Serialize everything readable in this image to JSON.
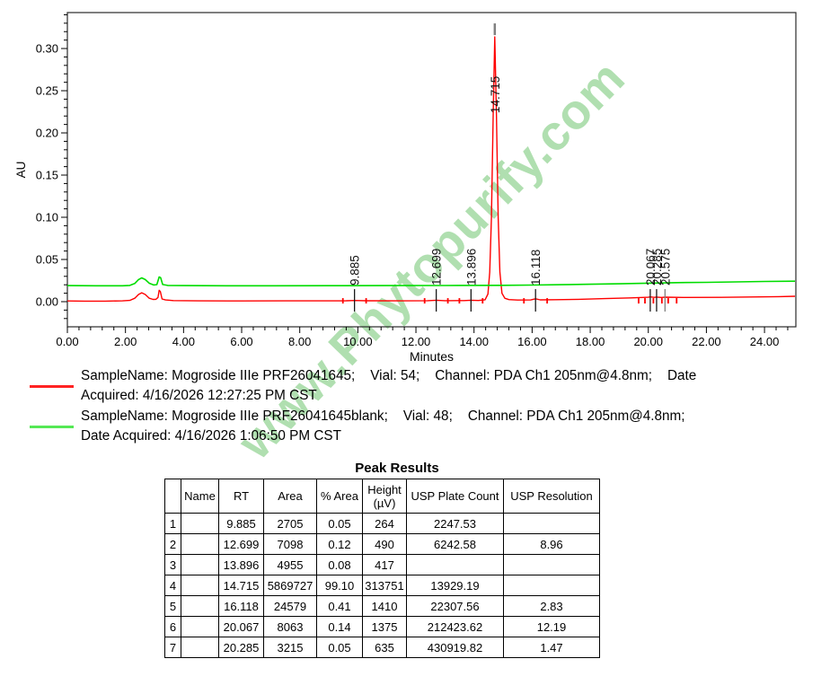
{
  "watermark": {
    "text": "www.Phytopurify.com",
    "color": "rgba(112,196,112,0.55)"
  },
  "chart_data": {
    "type": "line",
    "title": "",
    "xlabel": "Minutes",
    "ylabel": "AU",
    "xlim": [
      0,
      25.08
    ],
    "ylim": [
      -0.0298,
      0.3426
    ],
    "grid": false,
    "x_major_ticks": [
      0,
      2,
      4,
      6,
      8,
      10,
      12,
      14,
      16,
      18,
      20,
      22,
      24
    ],
    "x_tick_labels": [
      "0.00",
      "2.00",
      "4.00",
      "6.00",
      "8.00",
      "10.00",
      "12.00",
      "14.00",
      "16.00",
      "18.00",
      "20.00",
      "22.00",
      "24.00"
    ],
    "x_minor_step": 0.4,
    "y_major_ticks": [
      0.0,
      0.05,
      0.1,
      0.15,
      0.2,
      0.25,
      0.3
    ],
    "y_tick_labels": [
      "0.00",
      "0.05",
      "0.10",
      "0.15",
      "0.20",
      "0.25",
      "0.30"
    ],
    "y_minor_step": 0.01,
    "series": [
      {
        "name": "Mogroside IIIe PRF26041645 (PDA Ch1 205nm@4.8nm)",
        "color": "#ff0000",
        "points": [
          [
            0,
            0.0008
          ],
          [
            0.6,
            0.0006
          ],
          [
            1.3,
            0.0006
          ],
          [
            1.9,
            0.0009
          ],
          [
            2.15,
            0.0015
          ],
          [
            2.32,
            0.004
          ],
          [
            2.45,
            0.0085
          ],
          [
            2.56,
            0.0105
          ],
          [
            2.68,
            0.0085
          ],
          [
            2.82,
            0.004
          ],
          [
            2.95,
            0.0027
          ],
          [
            3.05,
            0.0028
          ],
          [
            3.12,
            0.005
          ],
          [
            3.16,
            0.0135
          ],
          [
            3.2,
            0.012
          ],
          [
            3.26,
            0.0032
          ],
          [
            3.38,
            0.002
          ],
          [
            3.65,
            0.0013
          ],
          [
            4.5,
            0.0009
          ],
          [
            6,
            0.0008
          ],
          [
            7.5,
            0.0009
          ],
          [
            9,
            0.001
          ],
          [
            9.6,
            0.0011
          ],
          [
            9.885,
            0.0014
          ],
          [
            10.3,
            0.0011
          ],
          [
            11.5,
            0.001
          ],
          [
            12.4,
            0.0012
          ],
          [
            12.699,
            0.0017
          ],
          [
            13.0,
            0.0012
          ],
          [
            13.65,
            0.0013
          ],
          [
            13.896,
            0.0017
          ],
          [
            14.15,
            0.0014
          ],
          [
            14.38,
            0.0022
          ],
          [
            14.48,
            0.009
          ],
          [
            14.54,
            0.035
          ],
          [
            14.6,
            0.1
          ],
          [
            14.66,
            0.225
          ],
          [
            14.715,
            0.3138
          ],
          [
            14.77,
            0.225
          ],
          [
            14.83,
            0.1
          ],
          [
            14.89,
            0.035
          ],
          [
            14.96,
            0.01
          ],
          [
            15.06,
            0.004
          ],
          [
            15.2,
            0.0024
          ],
          [
            15.5,
            0.0019
          ],
          [
            15.95,
            0.002
          ],
          [
            16.118,
            0.0034
          ],
          [
            16.28,
            0.0021
          ],
          [
            16.8,
            0.0023
          ],
          [
            17.6,
            0.0028
          ],
          [
            18.5,
            0.0036
          ],
          [
            19.4,
            0.0045
          ],
          [
            20.0,
            0.0052
          ],
          [
            20.067,
            0.0056
          ],
          [
            20.2,
            0.0051
          ],
          [
            20.285,
            0.0054
          ],
          [
            20.45,
            0.005
          ],
          [
            20.575,
            0.0053
          ],
          [
            21.2,
            0.005
          ],
          [
            22.5,
            0.0051
          ],
          [
            23.5,
            0.0055
          ],
          [
            24.5,
            0.006
          ],
          [
            25.05,
            0.0064
          ]
        ]
      },
      {
        "name": "Mogroside IIIe PRF26041645blank (PDA Ch1 205nm@4.8nm)",
        "color": "#00dd00",
        "points": [
          [
            0,
            0.019
          ],
          [
            1,
            0.0188
          ],
          [
            1.9,
            0.0188
          ],
          [
            2.15,
            0.0192
          ],
          [
            2.32,
            0.0215
          ],
          [
            2.45,
            0.0262
          ],
          [
            2.56,
            0.0282
          ],
          [
            2.68,
            0.0262
          ],
          [
            2.82,
            0.0218
          ],
          [
            2.97,
            0.0198
          ],
          [
            3.08,
            0.0202
          ],
          [
            3.16,
            0.0292
          ],
          [
            3.21,
            0.0285
          ],
          [
            3.28,
            0.0203
          ],
          [
            3.45,
            0.0193
          ],
          [
            4,
            0.019
          ],
          [
            5.5,
            0.0188
          ],
          [
            7,
            0.0188
          ],
          [
            9,
            0.0189
          ],
          [
            11,
            0.019
          ],
          [
            13,
            0.0191
          ],
          [
            15,
            0.0194
          ],
          [
            16,
            0.0197
          ],
          [
            17,
            0.0201
          ],
          [
            18,
            0.0206
          ],
          [
            19,
            0.0212
          ],
          [
            20,
            0.0219
          ],
          [
            21,
            0.0225
          ],
          [
            22,
            0.0229
          ],
          [
            23,
            0.0234
          ],
          [
            24,
            0.0239
          ],
          [
            25.05,
            0.0243
          ]
        ]
      }
    ],
    "peaks": [
      {
        "rt": 9.885,
        "label": "9.885",
        "height_au": 0.0003,
        "marker_color": "#1a1a1a"
      },
      {
        "rt": 12.699,
        "label": "12.699",
        "height_au": 0.0005,
        "marker_color": "#1a1a1a"
      },
      {
        "rt": 13.896,
        "label": "13.896",
        "height_au": 0.0004,
        "marker_color": "#1a1a1a"
      },
      {
        "rt": 14.715,
        "label": "14.715",
        "height_au": 0.3138,
        "marker_color": "#808080"
      },
      {
        "rt": 16.118,
        "label": "16.118",
        "height_au": 0.0014,
        "marker_color": "#1a1a1a"
      },
      {
        "rt": 20.067,
        "label": "20.067",
        "height_au": 0.0014,
        "marker_color": "#1a1a1a"
      },
      {
        "rt": 20.285,
        "label": "20.285",
        "height_au": 0.0006,
        "marker_color": "#1a1a1a"
      },
      {
        "rt": 20.575,
        "label": "20.575",
        "height_au": 0.0003,
        "marker_color": "#808080"
      }
    ]
  },
  "legend": {
    "entries": [
      {
        "color": "#ff2222",
        "lines": [
          "SampleName: Mogroside IIIe PRF26041645;    Vial: 54;    Channel: PDA Ch1 205nm@4.8nm;    Date",
          "Acquired: 4/16/2026 12:27:25 PM CST"
        ]
      },
      {
        "color": "#55e855",
        "lines": [
          "SampleName: Mogroside IIIe PRF26041645blank;    Vial: 48;    Channel: PDA Ch1 205nm@4.8nm;",
          "Date Acquired: 4/16/2026 1:06:50 PM CST"
        ]
      }
    ]
  },
  "peak_results": {
    "title": "Peak Results",
    "columns": [
      "",
      "Name",
      "RT",
      "Area",
      "% Area",
      "Height\n(µV)",
      "USP Plate Count",
      "USP Resolution"
    ],
    "rows": [
      [
        "1",
        "",
        "9.885",
        "2705",
        "0.05",
        "264",
        "2247.53",
        ""
      ],
      [
        "2",
        "",
        "12.699",
        "7098",
        "0.12",
        "490",
        "6242.58",
        "8.96"
      ],
      [
        "3",
        "",
        "13.896",
        "4955",
        "0.08",
        "417",
        "",
        ""
      ],
      [
        "4",
        "",
        "14.715",
        "5869727",
        "99.10",
        "313751",
        "13929.19",
        ""
      ],
      [
        "5",
        "",
        "16.118",
        "24579",
        "0.41",
        "1410",
        "22307.56",
        "2.83"
      ],
      [
        "6",
        "",
        "20.067",
        "8063",
        "0.14",
        "1375",
        "212423.62",
        "12.19"
      ],
      [
        "7",
        "",
        "20.285",
        "3215",
        "0.05",
        "635",
        "430919.82",
        "1.47"
      ]
    ]
  }
}
